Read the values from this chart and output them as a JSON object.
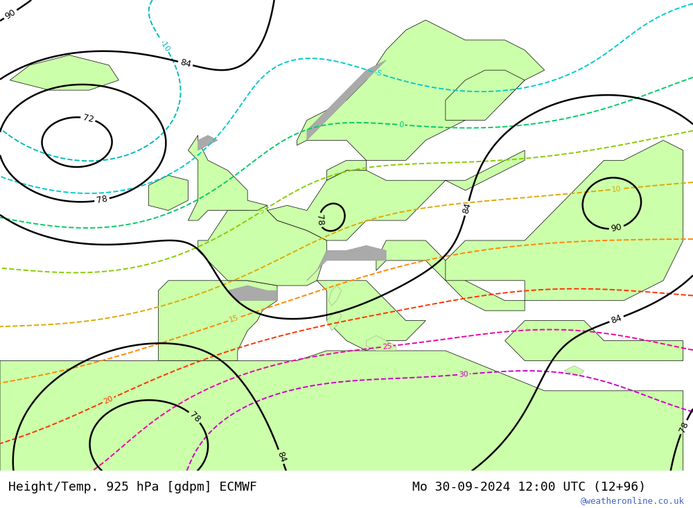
{
  "title_left": "Height/Temp. 925 hPa [gdpm] ECMWF",
  "title_right": "Mo 30-09-2024 12:00 UTC (12+96)",
  "watermark": "@weatheronline.co.uk",
  "land_color": "#ccffaa",
  "sea_color": "#d8d8d8",
  "mountain_color": "#aaaaaa",
  "title_fontsize": 13,
  "watermark_color": "#4466cc",
  "temp_colors": {
    "neg10": "#00bbbb",
    "neg5": "#00cccc",
    "zero": "#00cc66",
    "pos5": "#88cc00",
    "pos10": "#ddaa00",
    "pos15": "#ff8800",
    "pos20": "#ff3300",
    "pos25": "#ee00aa",
    "pos30": "#cc00cc"
  }
}
